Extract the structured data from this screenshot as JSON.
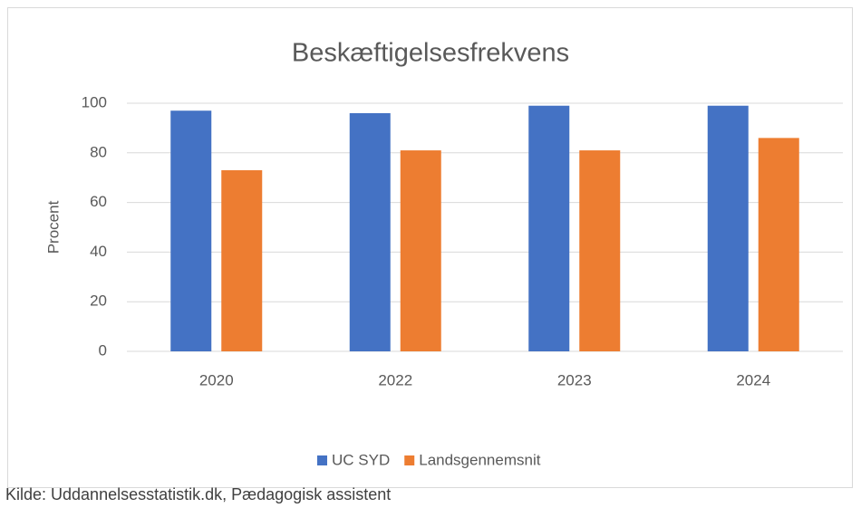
{
  "chart_data": {
    "type": "bar",
    "title": "Beskæftigelsesfrekvens",
    "y_label": "Procent",
    "categories": [
      "2020",
      "2022",
      "2023",
      "2024"
    ],
    "series": [
      {
        "name": "UC SYD",
        "color": "#4472c4",
        "values": [
          97,
          96,
          99,
          99
        ]
      },
      {
        "name": "Landsgennemsnit",
        "color": "#ed7d31",
        "values": [
          73,
          81,
          81,
          86
        ]
      }
    ],
    "ylim": [
      0,
      100
    ],
    "yticks": [
      0,
      20,
      40,
      60,
      80,
      100
    ],
    "grid": true,
    "legend": "bottom",
    "source": "Kilde: Uddannelsesstatistik.dk, Pædagogisk assistent"
  }
}
